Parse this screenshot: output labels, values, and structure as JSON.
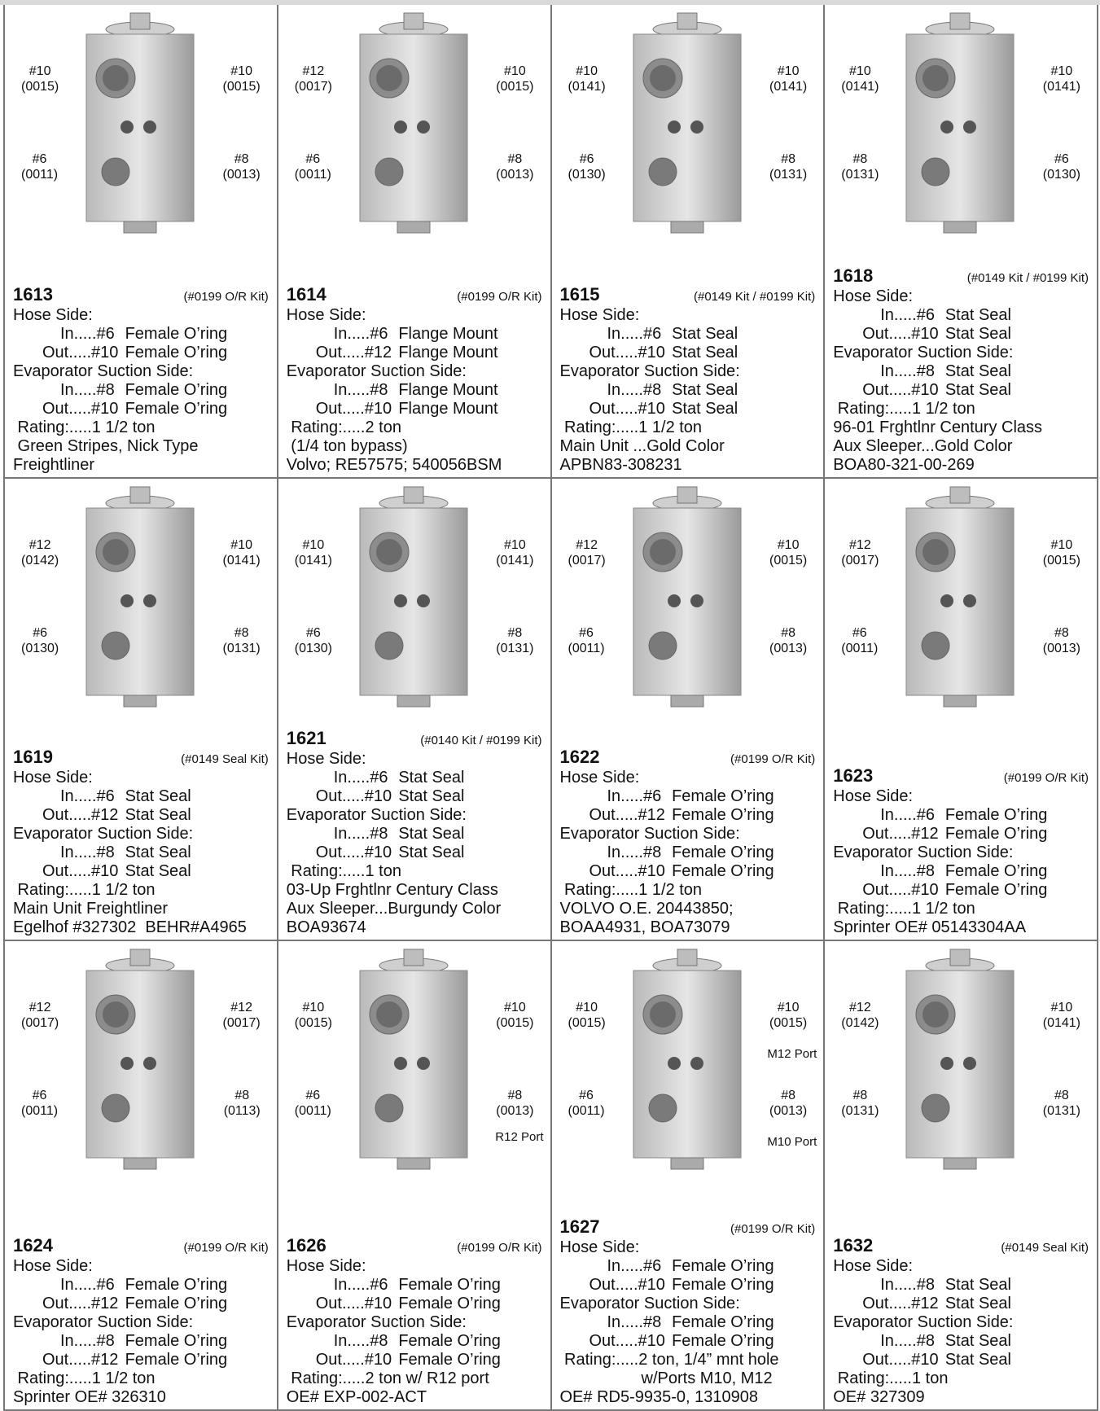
{
  "cells": [
    {
      "model": "1613",
      "kit": "(#0199 O/R Kit)",
      "labels": {
        "tl": [
          "#10",
          "(0015)"
        ],
        "tr": [
          "#10",
          "(0015)"
        ],
        "bl": [
          "#6",
          "(0011)"
        ],
        "br": [
          "#8",
          "(0013)"
        ]
      },
      "hose_side": "Hose Side:",
      "hose_in": "In.....#6",
      "hose_in_type": "Female O’ring",
      "hose_out": "Out.....#10",
      "hose_out_type": "Female O’ring",
      "evap_side": "Evaporator Suction Side:",
      "evap_in": "In.....#8",
      "evap_in_type": "Female O’ring",
      "evap_out": "Out.....#10",
      "evap_out_type": "Female O’ring",
      "notes": [
        " Rating:.....1 1/2 ton",
        " Green Stripes, Nick Type",
        "Freightliner"
      ]
    },
    {
      "model": "1614",
      "kit": "(#0199 O/R Kit)",
      "labels": {
        "tl": [
          "#12",
          "(0017)"
        ],
        "tr": [
          "#10",
          "(0015)"
        ],
        "bl": [
          "#6",
          "(0011)"
        ],
        "br": [
          "#8",
          "(0013)"
        ]
      },
      "hose_side": "Hose Side:",
      "hose_in": "In.....#6",
      "hose_in_type": "Flange Mount",
      "hose_out": "Out.....#12",
      "hose_out_type": "Flange Mount",
      "evap_side": "Evaporator Suction Side:",
      "evap_in": "In.....#8",
      "evap_in_type": "Flange Mount",
      "evap_out": "Out.....#10",
      "evap_out_type": "Flange Mount",
      "notes": [
        " Rating:.....2 ton",
        " (1/4 ton bypass)",
        "Volvo; RE57575; 540056BSM"
      ]
    },
    {
      "model": "1615",
      "kit": "(#0149 Kit / #0199 Kit)",
      "labels": {
        "tl": [
          "#10",
          "(0141)"
        ],
        "tr": [
          "#10",
          "(0141)"
        ],
        "bl": [
          "#6",
          "(0130)"
        ],
        "br": [
          "#8",
          "(0131)"
        ]
      },
      "hose_side": "Hose Side:",
      "hose_in": "In.....#6",
      "hose_in_type": "Stat Seal",
      "hose_out": "Out.....#10",
      "hose_out_type": "Stat Seal",
      "evap_side": "Evaporator Suction Side:",
      "evap_in": "In.....#8",
      "evap_in_type": "Stat Seal",
      "evap_out": "Out.....#10",
      "evap_out_type": "Stat Seal",
      "notes": [
        " Rating:.....1 1/2 ton",
        "Main Unit ...Gold Color",
        "APBN83-308231"
      ]
    },
    {
      "model": "1618",
      "kit": "(#0149 Kit / #0199 Kit)",
      "labels": {
        "tl": [
          "#10",
          "(0141)"
        ],
        "tr": [
          "#10",
          "(0141)"
        ],
        "bl": [
          "#8",
          "(0131)"
        ],
        "br": [
          "#6",
          "(0130)"
        ]
      },
      "hose_side": "Hose Side:",
      "hose_in": "In.....#6",
      "hose_in_type": "Stat Seal",
      "hose_out": "Out.....#10",
      "hose_out_type": "Stat Seal",
      "evap_side": "Evaporator Suction Side:",
      "evap_in": "In.....#8",
      "evap_in_type": "Stat Seal",
      "evap_out": "Out.....#10",
      "evap_out_type": "Stat Seal",
      "notes": [
        " Rating:.....1 1/2 ton",
        "96-01 Frghtlnr Century Class",
        "Aux Sleeper...Gold Color",
        "BOA80-321-00-269"
      ]
    },
    {
      "model": "1619",
      "kit": "(#0149 Seal Kit)",
      "labels": {
        "tl": [
          "#12",
          "(0142)"
        ],
        "tr": [
          "#10",
          "(0141)"
        ],
        "bl": [
          "#6",
          "(0130)"
        ],
        "br": [
          "#8",
          "(0131)"
        ]
      },
      "hose_side": "Hose Side:",
      "hose_in": "In.....#6",
      "hose_in_type": "Stat Seal",
      "hose_out": "Out.....#12",
      "hose_out_type": "Stat Seal",
      "evap_side": "Evaporator Suction Side:",
      "evap_in": "In.....#8",
      "evap_in_type": "Stat Seal",
      "evap_out": "Out.....#10",
      "evap_out_type": "Stat Seal",
      "notes": [
        " Rating:.....1 1/2 ton",
        "Main Unit Freightliner",
        "Egelhof #327302  BEHR#A4965"
      ]
    },
    {
      "model": "1621",
      "kit": "(#0140 Kit / #0199 Kit)",
      "labels": {
        "tl": [
          "#10",
          "(0141)"
        ],
        "tr": [
          "#10",
          "(0141)"
        ],
        "bl": [
          "#6",
          "(0130)"
        ],
        "br": [
          "#8",
          "(0131)"
        ]
      },
      "hose_side": "Hose Side:",
      "hose_in": "In.....#6",
      "hose_in_type": "Stat Seal",
      "hose_out": "Out.....#10",
      "hose_out_type": "Stat Seal",
      "evap_side": "Evaporator Suction Side:",
      "evap_in": "In.....#8",
      "evap_in_type": "Stat Seal",
      "evap_out": "Out.....#10",
      "evap_out_type": "Stat Seal",
      "notes": [
        " Rating:.....1 ton",
        "03-Up Frghtlnr Century Class",
        "Aux Sleeper...Burgundy Color",
        "BOA93674"
      ]
    },
    {
      "model": "1622",
      "kit": "(#0199 O/R Kit)",
      "labels": {
        "tl": [
          "#12",
          "(0017)"
        ],
        "tr": [
          "#10",
          "(0015)"
        ],
        "bl": [
          "#6",
          "(0011)"
        ],
        "br": [
          "#8",
          "(0013)"
        ]
      },
      "hose_side": "Hose Side:",
      "hose_in": "In.....#6",
      "hose_in_type": "Female O’ring",
      "hose_out": "Out.....#12",
      "hose_out_type": "Female O’ring",
      "evap_side": "Evaporator Suction Side:",
      "evap_in": "In.....#8",
      "evap_in_type": "Female O’ring",
      "evap_out": "Out.....#10",
      "evap_out_type": "Female O’ring",
      "notes": [
        " Rating:.....1 1/2 ton",
        "VOLVO O.E. 20443850;",
        "BOAA4931, BOA73079"
      ]
    },
    {
      "model": "1623",
      "kit": "(#0199 O/R Kit)",
      "labels": {
        "tl": [
          "#12",
          "(0017)"
        ],
        "tr": [
          "#10",
          "(0015)"
        ],
        "bl": [
          "#6",
          "(0011)"
        ],
        "br": [
          "#8",
          "(0013)"
        ]
      },
      "hose_side": "Hose Side:",
      "hose_in": "In.....#6",
      "hose_in_type": "Female O’ring",
      "hose_out": "Out.....#12",
      "hose_out_type": "Female O’ring",
      "evap_side": "Evaporator Suction Side:",
      "evap_in": "In.....#8",
      "evap_in_type": "Female O’ring",
      "evap_out": "Out.....#10",
      "evap_out_type": "Female O’ring",
      "notes": [
        " Rating:.....1 1/2 ton",
        "Sprinter OE# 05143304AA"
      ]
    },
    {
      "model": "1624",
      "kit": "(#0199 O/R Kit)",
      "labels": {
        "tl": [
          "#12",
          "(0017)"
        ],
        "tr": [
          "#12",
          "(0017)"
        ],
        "bl": [
          "#6",
          "(0011)"
        ],
        "br": [
          "#8",
          "(0113)"
        ]
      },
      "hose_side": "Hose Side:",
      "hose_in": "In.....#6",
      "hose_in_type": "Female O’ring",
      "hose_out": "Out.....#12",
      "hose_out_type": "Female O’ring",
      "evap_side": "Evaporator Suction Side:",
      "evap_in": "In.....#8",
      "evap_in_type": "Female O’ring",
      "evap_out": "Out.....#12",
      "evap_out_type": "Female O’ring",
      "notes": [
        " Rating:.....1 1/2 ton",
        "Sprinter OE# 326310"
      ]
    },
    {
      "model": "1626",
      "kit": "(#0199 O/R Kit)",
      "labels": {
        "tl": [
          "#10",
          "(0015)"
        ],
        "tr": [
          "#10",
          "(0015)"
        ],
        "bl": [
          "#6",
          "(0011)"
        ],
        "br": [
          "#8",
          "(0013)"
        ]
      },
      "ports": [
        "R12 Port"
      ],
      "hose_side": "Hose Side:",
      "hose_in": "In.....#6",
      "hose_in_type": "Female O’ring",
      "hose_out": "Out.....#10",
      "hose_out_type": "Female O’ring",
      "evap_side": "Evaporator Suction Side:",
      "evap_in": "In.....#8",
      "evap_in_type": "Female O’ring",
      "evap_out": "Out.....#10",
      "evap_out_type": "Female O’ring",
      "notes": [
        " Rating:.....2 ton w/ R12 port",
        "OE# EXP-002-ACT"
      ]
    },
    {
      "model": "1627",
      "kit": "(#0199 O/R Kit)",
      "labels": {
        "tl": [
          "#10",
          "(0015)"
        ],
        "tr": [
          "#10",
          "(0015)"
        ],
        "bl": [
          "#6",
          "(0011)"
        ],
        "br": [
          "#8",
          "(0013)"
        ]
      },
      "ports": [
        "M12 Port",
        "M10 Port"
      ],
      "hose_side": "Hose Side:",
      "hose_in": "In.....#6",
      "hose_in_type": "Female O’ring",
      "hose_out": "Out.....#10",
      "hose_out_type": "Female O’ring",
      "evap_side": "Evaporator Suction Side:",
      "evap_in": "In.....#8",
      "evap_in_type": "Female O’ring",
      "evap_out": "Out.....#10",
      "evap_out_type": "Female O’ring",
      "notes": [
        " Rating:.....2 ton, 1/4” mnt hole",
        "                  w/Ports M10, M12",
        "OE# RD5-9935-0, 1310908"
      ]
    },
    {
      "model": "1632",
      "kit": "(#0149 Seal Kit)",
      "labels": {
        "tl": [
          "#12",
          "(0142)"
        ],
        "tr": [
          "#10",
          "(0141)"
        ],
        "bl": [
          "#8",
          "(0131)"
        ],
        "br": [
          "#8",
          "(0131)"
        ]
      },
      "hose_side": "Hose Side:",
      "hose_in": "In.....#8",
      "hose_in_type": "Stat Seal",
      "hose_out": "Out.....#12",
      "hose_out_type": "Stat Seal",
      "evap_side": "Evaporator Suction Side:",
      "evap_in": "In.....#8",
      "evap_in_type": "Stat Seal",
      "evap_out": "Out.....#10",
      "evap_out_type": "Stat Seal",
      "notes": [
        " Rating:.....1 ton",
        "OE# 327309"
      ]
    }
  ]
}
